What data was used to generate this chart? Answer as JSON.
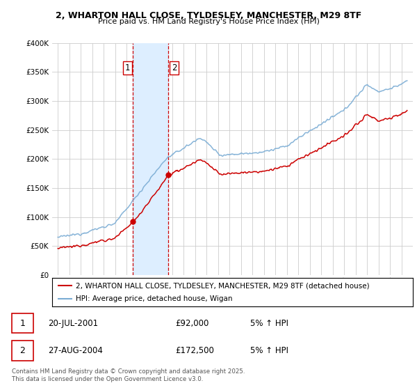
{
  "title1": "2, WHARTON HALL CLOSE, TYLDESLEY, MANCHESTER, M29 8TF",
  "title2": "Price paid vs. HM Land Registry's House Price Index (HPI)",
  "ylabel_vals": [
    "£0",
    "£50K",
    "£100K",
    "£150K",
    "£200K",
    "£250K",
    "£300K",
    "£350K",
    "£400K"
  ],
  "ylim": [
    0,
    400000
  ],
  "legend_line1": "2, WHARTON HALL CLOSE, TYLDESLEY, MANCHESTER, M29 8TF (detached house)",
  "legend_line2": "HPI: Average price, detached house, Wigan",
  "sale1_date": "20-JUL-2001",
  "sale1_price": "£92,000",
  "sale1_hpi": "5% ↑ HPI",
  "sale2_date": "27-AUG-2004",
  "sale2_price": "£172,500",
  "sale2_hpi": "5% ↑ HPI",
  "footnote": "Contains HM Land Registry data © Crown copyright and database right 2025.\nThis data is licensed under the Open Government Licence v3.0.",
  "sale1_x": 2001.55,
  "sale1_y": 92000,
  "sale2_x": 2004.66,
  "sale2_y": 172500,
  "shade_x1": 2001.55,
  "shade_x2": 2004.66,
  "line_color_red": "#cc0000",
  "line_color_blue": "#7aacd4",
  "shade_color": "#ddeeff",
  "vline_color": "#cc0000",
  "background": "#ffffff",
  "grid_color": "#cccccc",
  "xmin": 1994.5,
  "xmax": 2026.0
}
